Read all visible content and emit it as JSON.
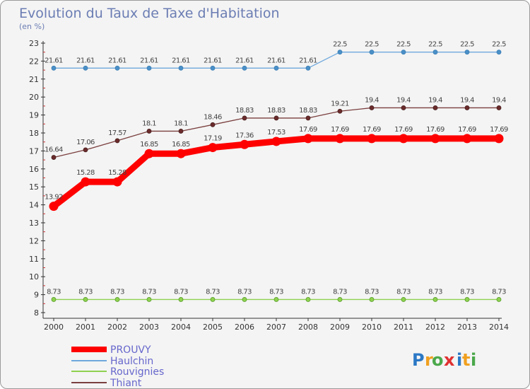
{
  "chart_data": {
    "type": "line",
    "title": "Evolution du Taux de Taxe d'Habitation",
    "subtitle": "(en %)",
    "xlabel": "",
    "ylabel": "",
    "x": [
      "2000",
      "2001",
      "2002",
      "2003",
      "2004",
      "2005",
      "2006",
      "2007",
      "2008",
      "2009",
      "2010",
      "2011",
      "2012",
      "2013",
      "2014"
    ],
    "ylim": [
      8,
      23
    ],
    "yticks": [
      "8",
      "9",
      "10",
      "11",
      "12",
      "13",
      "14",
      "15",
      "16",
      "17",
      "18",
      "19",
      "20",
      "21",
      "22",
      "23"
    ],
    "grid": false,
    "legend_position": "bottom-left",
    "series": [
      {
        "name": "PROUVY",
        "color": "#ff0000",
        "values": [
          13.92,
          15.28,
          15.28,
          16.85,
          16.85,
          17.19,
          17.36,
          17.53,
          17.69,
          17.69,
          17.69,
          17.69,
          17.69,
          17.69,
          17.69
        ],
        "labels": [
          "13.92",
          "15.28",
          "15.28",
          "16.85",
          "16.85",
          "17.19",
          "17.36",
          "17.53",
          "17.69",
          "17.69",
          "17.69",
          "17.69",
          "17.69",
          "17.69",
          "17.69"
        ]
      },
      {
        "name": "Haulchin",
        "color": "#6fa8dc",
        "values": [
          21.61,
          21.61,
          21.61,
          21.61,
          21.61,
          21.61,
          21.61,
          21.61,
          21.61,
          22.5,
          22.5,
          22.5,
          22.5,
          22.5,
          22.5
        ],
        "labels": [
          "21.61",
          "21.61",
          "21.61",
          "21.61",
          "21.61",
          "21.61",
          "21.61",
          "21.61",
          "21.61",
          "22.5",
          "22.5",
          "22.5",
          "22.5",
          "22.5",
          "22.5"
        ]
      },
      {
        "name": "Rouvignies",
        "color": "#8fd14f",
        "values": [
          8.73,
          8.73,
          8.73,
          8.73,
          8.73,
          8.73,
          8.73,
          8.73,
          8.73,
          8.73,
          8.73,
          8.73,
          8.73,
          8.73,
          8.73
        ],
        "labels": [
          "8.73",
          "8.73",
          "8.73",
          "8.73",
          "8.73",
          "8.73",
          "8.73",
          "8.73",
          "8.73",
          "8.73",
          "8.73",
          "8.73",
          "8.73",
          "8.73",
          "8.73"
        ]
      },
      {
        "name": "Thiant",
        "color": "#7b3f3f",
        "values": [
          16.64,
          17.06,
          17.57,
          18.1,
          18.1,
          18.46,
          18.83,
          18.83,
          18.83,
          19.21,
          19.4,
          19.4,
          19.4,
          19.4,
          19.4
        ],
        "labels": [
          "16.64",
          "17.06",
          "17.57",
          "18.1",
          "18.1",
          "18.46",
          "18.83",
          "18.83",
          "18.83",
          "19.21",
          "19.4",
          "19.4",
          "19.4",
          "19.4",
          "19.4"
        ]
      }
    ]
  },
  "logo": {
    "text": "Proxiti"
  },
  "colors": {
    "title": "#6b7db3",
    "legend_text": "#6666cc",
    "axis": "#333333",
    "frame_bg": "#f4f4f4"
  }
}
